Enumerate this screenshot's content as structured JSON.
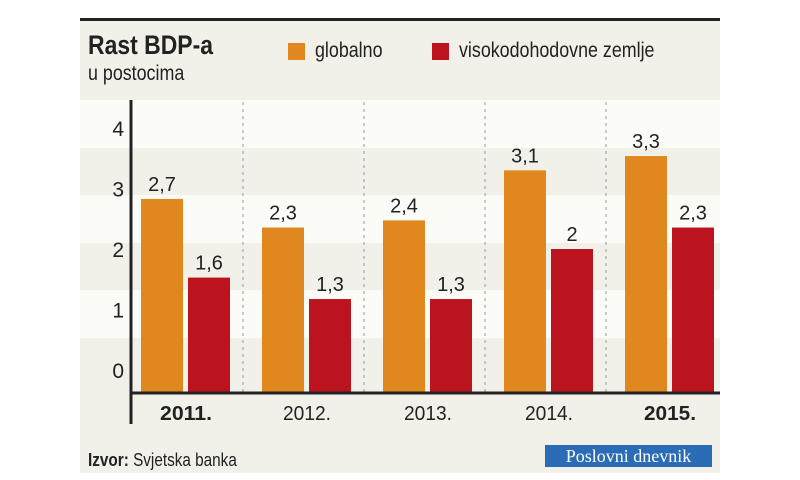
{
  "chart_data": {
    "type": "bar",
    "title": "Rast BDP-a",
    "subtitle": "u postocima",
    "categories": [
      "2011.",
      "2012.",
      "2013.",
      "2014.",
      "2015."
    ],
    "bold_categories": [
      "2011.",
      "2015."
    ],
    "series": [
      {
        "name": "globalno",
        "color": "#e0881e",
        "values": [
          2.7,
          2.3,
          2.4,
          3.1,
          3.3
        ],
        "labels": [
          "2,7",
          "2,3",
          "2,4",
          "3,1",
          "3,3"
        ]
      },
      {
        "name": "visokodohodovne zemlje",
        "color": "#bb141f",
        "values": [
          1.6,
          1.3,
          1.3,
          2,
          2.3
        ],
        "labels": [
          "1,6",
          "1,3",
          "1,3",
          "2",
          "2,3"
        ]
      }
    ],
    "yticks": [
      "0",
      "1",
      "2",
      "3",
      "4"
    ],
    "ylim": [
      0,
      4.4
    ],
    "legend": "top",
    "grid": false
  },
  "source": {
    "label": "Izvor:",
    "value": "Svjetska banka"
  },
  "logo": {
    "text": "Poslovni dnevnik"
  }
}
